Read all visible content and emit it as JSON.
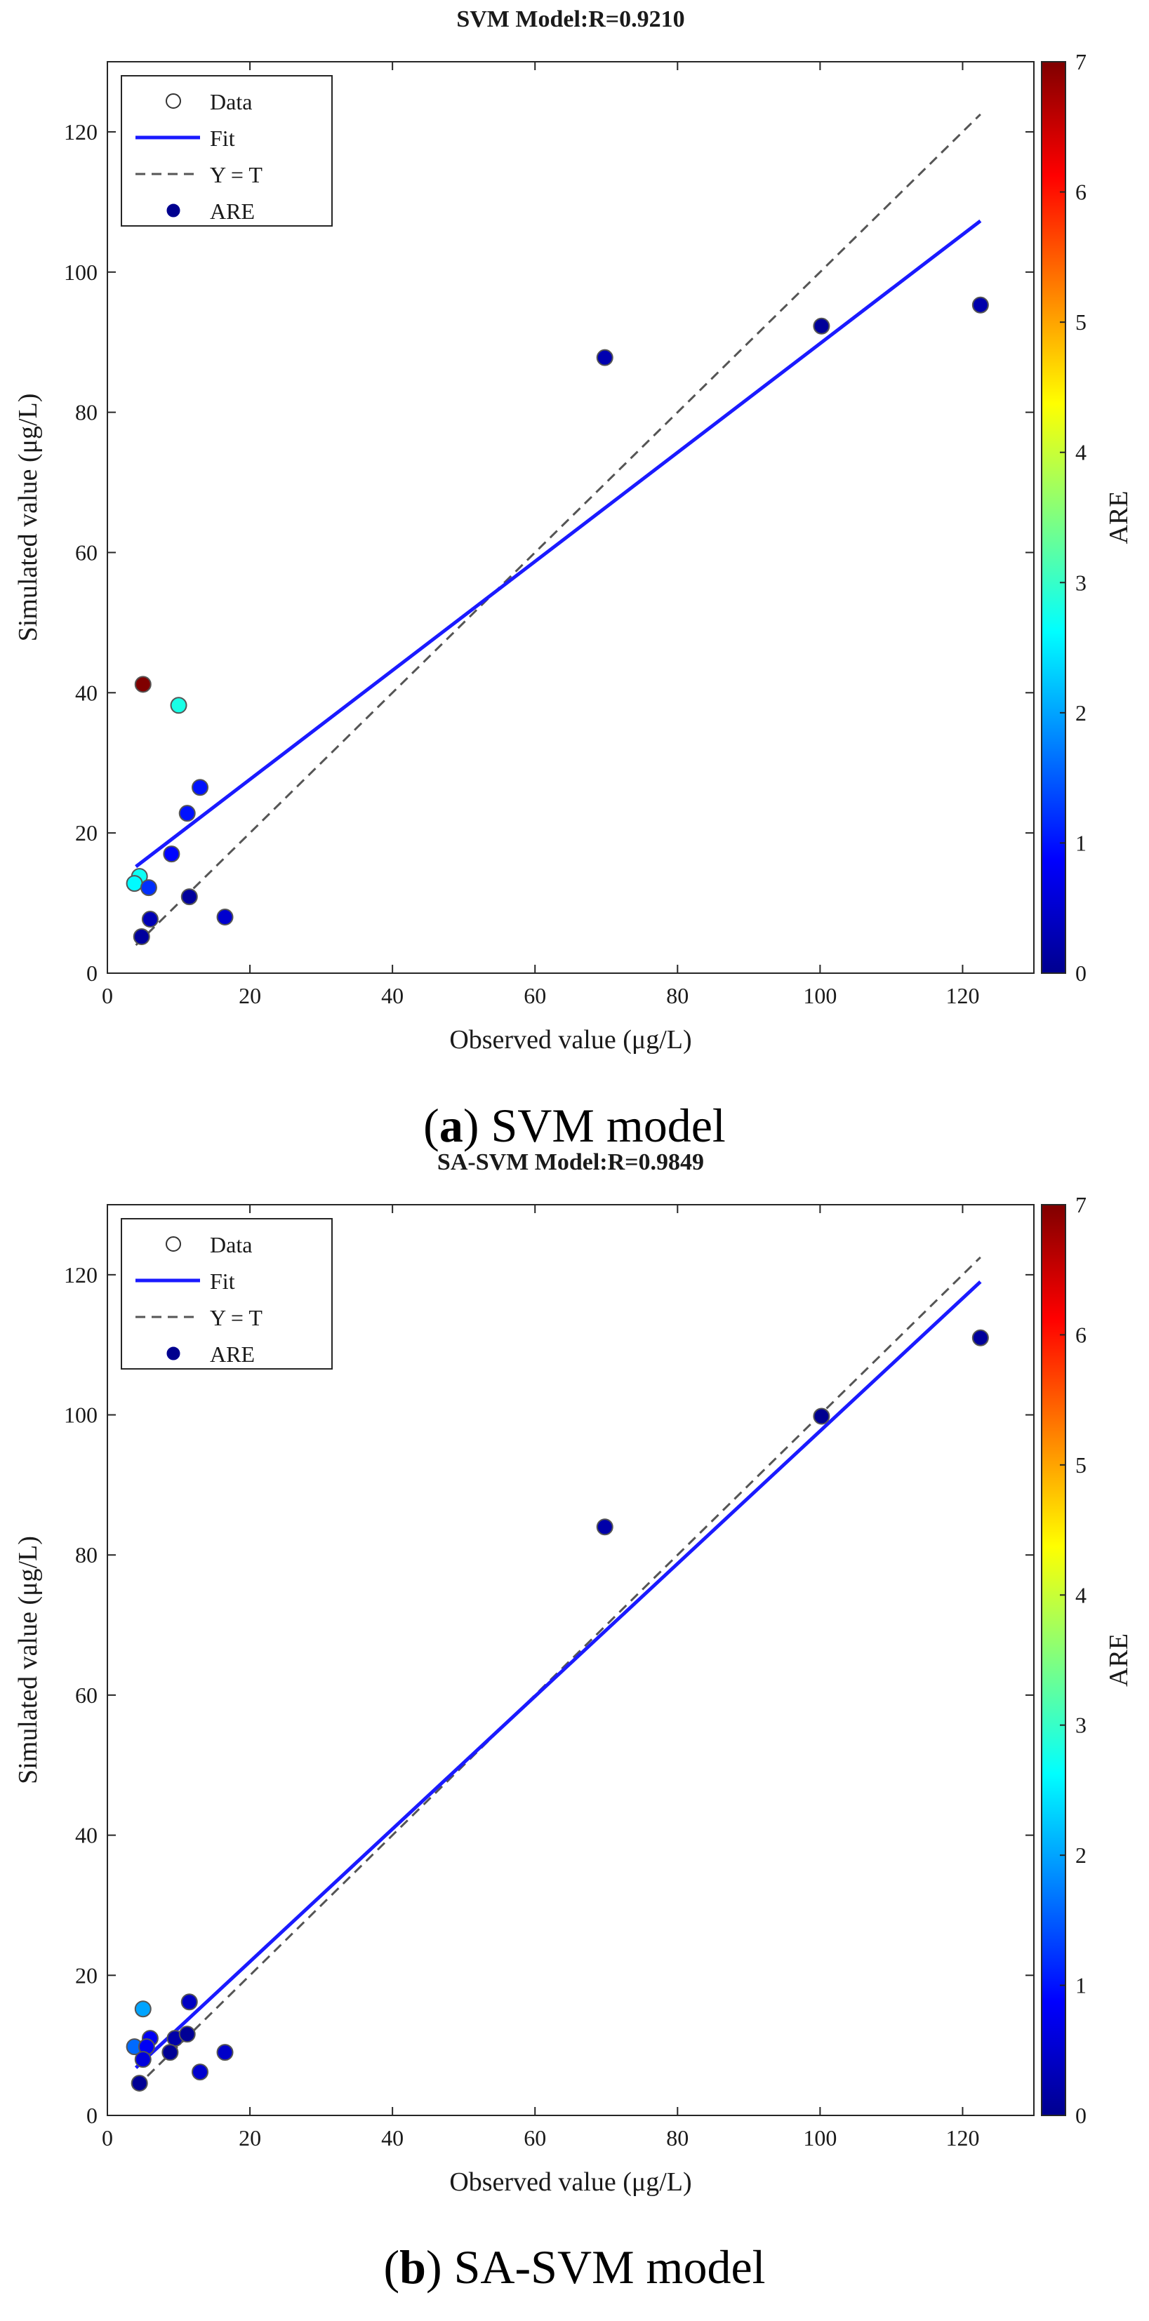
{
  "captions": [
    {
      "open": "(",
      "letter": "a",
      "close": ")",
      "text": " SVM model"
    },
    {
      "open": "(",
      "letter": "b",
      "close": ")",
      "text": " SA-SVM model"
    }
  ],
  "chart_data": [
    {
      "type": "scatter",
      "title": "SVM Model:R=0.9210",
      "xlabel": "Observed value (μg/L)",
      "ylabel": "Simulated value (μg/L)",
      "colorbar_label": "ARE",
      "xlim": [
        0,
        130
      ],
      "ylim": [
        0,
        130
      ],
      "xticks": [
        0,
        20,
        40,
        60,
        80,
        100,
        120
      ],
      "yticks": [
        0,
        20,
        40,
        60,
        80,
        100,
        120
      ],
      "colorbar_lim": [
        0,
        7
      ],
      "colorbar_ticks": [
        0,
        1,
        2,
        3,
        4,
        5,
        6,
        7
      ],
      "legend": {
        "position": "top-left",
        "entries": [
          "Data",
          "Fit",
          "Y = T",
          "ARE"
        ]
      },
      "fit_line": {
        "x": [
          4,
          122.5
        ],
        "y": [
          15.2,
          107.3
        ],
        "color": "#1a1aff"
      },
      "identity_line": {
        "x": [
          4,
          122.5
        ],
        "y": [
          4,
          122.5
        ],
        "color": "#555555"
      },
      "points": [
        {
          "x": 5.0,
          "y": 41.2,
          "are": 7.0
        },
        {
          "x": 10.0,
          "y": 38.2,
          "are": 2.8
        },
        {
          "x": 4.5,
          "y": 13.8,
          "are": 2.7
        },
        {
          "x": 3.8,
          "y": 12.8,
          "are": 2.6
        },
        {
          "x": 5.8,
          "y": 12.2,
          "are": 1.2
        },
        {
          "x": 13.0,
          "y": 26.5,
          "are": 1.0
        },
        {
          "x": 11.2,
          "y": 22.8,
          "are": 1.0
        },
        {
          "x": 9.0,
          "y": 17.0,
          "are": 0.9
        },
        {
          "x": 6.0,
          "y": 7.7,
          "are": 0.3
        },
        {
          "x": 4.8,
          "y": 5.2,
          "are": 0.1
        },
        {
          "x": 11.5,
          "y": 10.9,
          "are": 0.1
        },
        {
          "x": 16.5,
          "y": 8.0,
          "are": 0.5
        },
        {
          "x": 69.8,
          "y": 87.8,
          "are": 0.26
        },
        {
          "x": 100.2,
          "y": 92.3,
          "are": 0.08
        },
        {
          "x": 122.5,
          "y": 95.3,
          "are": 0.22
        }
      ]
    },
    {
      "type": "scatter",
      "title": "SA-SVM Model:R=0.9849",
      "xlabel": "Observed value (μg/L)",
      "ylabel": "Simulated value (μg/L)",
      "colorbar_label": "ARE",
      "xlim": [
        0,
        130
      ],
      "ylim": [
        0,
        130
      ],
      "xticks": [
        0,
        20,
        40,
        60,
        80,
        100,
        120
      ],
      "yticks": [
        0,
        20,
        40,
        60,
        80,
        100,
        120
      ],
      "colorbar_lim": [
        0,
        7
      ],
      "colorbar_ticks": [
        0,
        1,
        2,
        3,
        4,
        5,
        6,
        7
      ],
      "legend": {
        "position": "top-left",
        "entries": [
          "Data",
          "Fit",
          "Y = T",
          "ARE"
        ]
      },
      "fit_line": {
        "x": [
          4,
          122.5
        ],
        "y": [
          6.8,
          119.0
        ],
        "color": "#1a1aff"
      },
      "identity_line": {
        "x": [
          4,
          122.5
        ],
        "y": [
          4,
          122.5
        ],
        "color": "#555555"
      },
      "points": [
        {
          "x": 5.0,
          "y": 15.2,
          "are": 2.0
        },
        {
          "x": 3.8,
          "y": 9.8,
          "are": 1.6
        },
        {
          "x": 11.5,
          "y": 16.2,
          "are": 0.4
        },
        {
          "x": 6.0,
          "y": 11.0,
          "are": 0.8
        },
        {
          "x": 5.5,
          "y": 9.8,
          "are": 0.8
        },
        {
          "x": 9.5,
          "y": 11.0,
          "are": 0.2
        },
        {
          "x": 11.2,
          "y": 11.6,
          "are": 0.05
        },
        {
          "x": 8.8,
          "y": 9.0,
          "are": 0.05
        },
        {
          "x": 5.0,
          "y": 8.0,
          "are": 0.6
        },
        {
          "x": 4.5,
          "y": 4.6,
          "are": 0.05
        },
        {
          "x": 13.0,
          "y": 6.2,
          "are": 0.5
        },
        {
          "x": 16.5,
          "y": 9.0,
          "are": 0.45
        },
        {
          "x": 69.8,
          "y": 84.0,
          "are": 0.2
        },
        {
          "x": 100.2,
          "y": 99.8,
          "are": 0.01
        },
        {
          "x": 122.5,
          "y": 111.0,
          "are": 0.09
        }
      ]
    }
  ]
}
